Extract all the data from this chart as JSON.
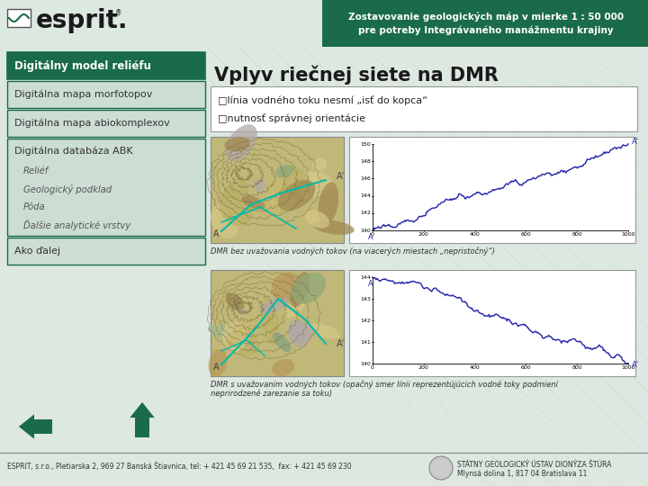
{
  "title_bar_color": "#1a6b4a",
  "title_bar_text": "Zostavovanie geologických máp v mierke 1 : 50 000\npre potreby Integrávaného manážmentu krajiny",
  "title_bar_text_color": "#ffffff",
  "bg_color": "#dce8e0",
  "logo_text_color": "#1a1a1a",
  "logo_box_color": "#1a6b4a",
  "main_title": "Vplyv riečnej siete na DMR",
  "main_title_color": "#1a1a1a",
  "left_panel_items": [
    {
      "text": "Digitálny model reliéfu",
      "bold": true,
      "highlighted": true
    },
    {
      "text": "Digitálna mapa morfotopov",
      "bold": false,
      "highlighted": false
    },
    {
      "text": "Digitálna mapa abiokomplexov",
      "bold": false,
      "highlighted": false
    },
    {
      "text": "Digitálna databáza ABK",
      "bold": false,
      "highlighted": false
    },
    {
      "text": "Reliéf",
      "bold": false,
      "highlighted": false,
      "indent": true
    },
    {
      "text": "Geologický podklad",
      "bold": false,
      "highlighted": false,
      "indent": true
    },
    {
      "text": "Pôda",
      "bold": false,
      "highlighted": false,
      "indent": true
    },
    {
      "text": "Ďalšie analytické vrstvy",
      "bold": false,
      "highlighted": false,
      "indent": true
    },
    {
      "text": "Ako ďalej",
      "bold": false,
      "highlighted": false
    }
  ],
  "bullet_text1": "□línia vodného toku nesmí „isť do kopca“",
  "bullet_text2": "□nutnosť správnej orientácie",
  "caption1": "DMR bez uvažovania vodných tokov (na viacerých miestach „nepristočný“)",
  "caption2": "DMR s uvažovaním vodných tokov (opačný smer línii reprezentújúcich vodné toky podmiení\nneprirodzené zarezanie sa toku)",
  "footer_text": "ESPRIT, s.r.o., Pletiarska 2, 969 27 Banská Štiavnica, tel: + 421 45 69 21 535,  fax: + 421 45 69 230",
  "footer_text2": "STÁTNY GEOLOGICKÝ ÚSTAV DIONÝZA ŠTÚRA\nMlynsá dolina 1, 817 04 Bratislava 11",
  "arrow_color": "#1a6b4a",
  "panel_border_color": "#1a6b4a",
  "highlight_color": "#1a6b4a",
  "highlight_text_color": "#ffffff",
  "normal_item_color": "#ccddd4",
  "normal_item_text_color": "#333333",
  "abk_sub_color": "#c8ddd0"
}
